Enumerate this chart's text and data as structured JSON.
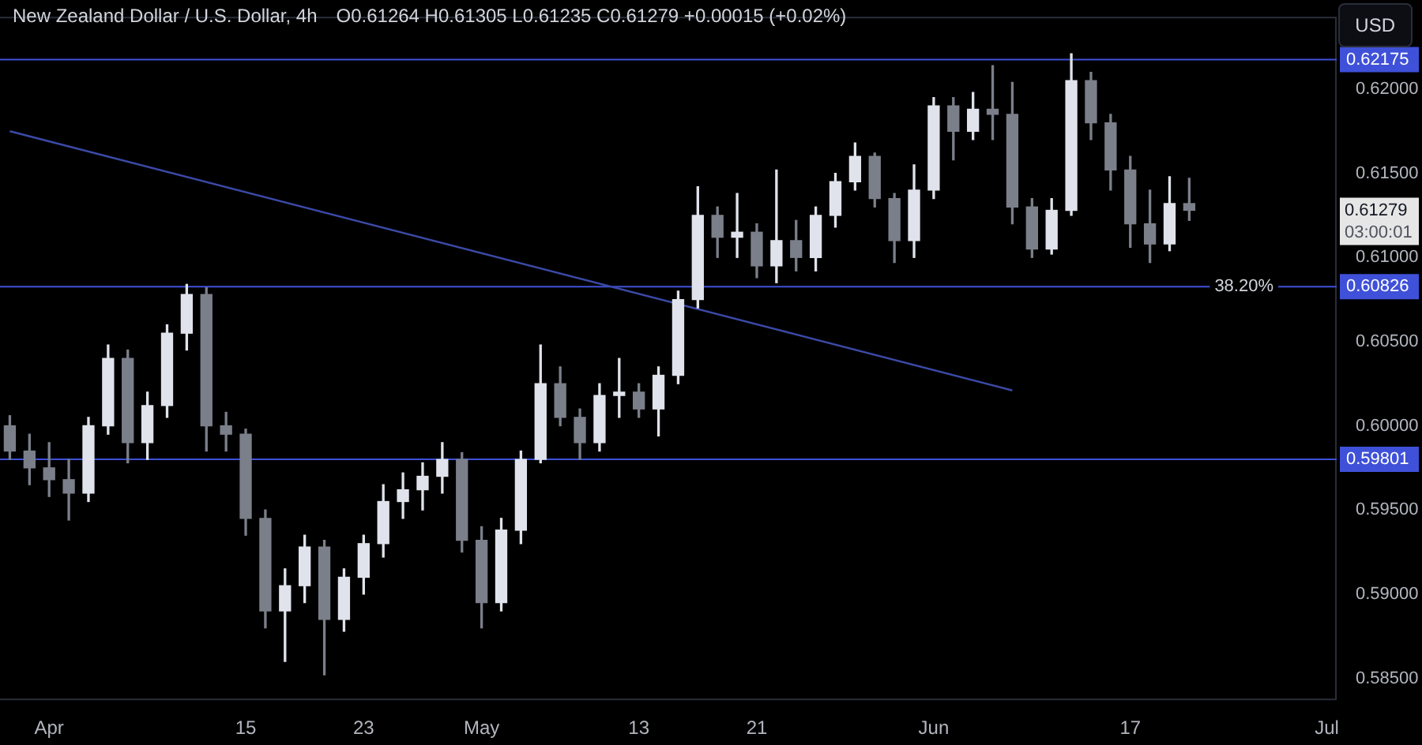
{
  "chart_data": {
    "type": "candlestick",
    "title": "New Zealand Dollar / U.S. Dollar, 4h",
    "subtitle": "O0.61264 H0.61305 L0.61235 C0.61279 +0.00015 (+0.02%)",
    "ylabel": "USD",
    "categories": [
      null,
      null,
      "Apr",
      null,
      null,
      null,
      null,
      null,
      null,
      null,
      null,
      null,
      "15",
      null,
      null,
      null,
      null,
      null,
      "23",
      null,
      null,
      null,
      null,
      null,
      "May",
      null,
      null,
      null,
      null,
      null,
      null,
      null,
      "13",
      null,
      null,
      null,
      null,
      null,
      "21",
      null,
      null,
      null,
      null,
      null,
      null,
      null,
      null,
      "Jun",
      null,
      null,
      null,
      null,
      null,
      null,
      null,
      null,
      null,
      "17",
      null,
      null,
      null,
      null,
      null,
      null,
      null,
      null,
      null,
      "Jul"
    ],
    "ohlc": [
      [
        0.6,
        0.6006,
        0.598,
        0.5985
      ],
      [
        0.5985,
        0.5995,
        0.5965,
        0.5975
      ],
      [
        0.5975,
        0.599,
        0.5958,
        0.5968
      ],
      [
        0.5968,
        0.598,
        0.5944,
        0.596
      ],
      [
        0.596,
        0.6005,
        0.5955,
        0.6
      ],
      [
        0.6,
        0.6048,
        0.5995,
        0.604
      ],
      [
        0.604,
        0.6045,
        0.5978,
        0.599
      ],
      [
        0.599,
        0.602,
        0.598,
        0.6012
      ],
      [
        0.6012,
        0.606,
        0.6005,
        0.6055
      ],
      [
        0.6055,
        0.6084,
        0.6045,
        0.6078
      ],
      [
        0.6078,
        0.6082,
        0.5985,
        0.6
      ],
      [
        0.6,
        0.6008,
        0.5985,
        0.5995
      ],
      [
        0.5995,
        0.5998,
        0.5935,
        0.5945
      ],
      [
        0.5945,
        0.595,
        0.588,
        0.589
      ],
      [
        0.589,
        0.5915,
        0.586,
        0.5905
      ],
      [
        0.5905,
        0.5935,
        0.5895,
        0.5928
      ],
      [
        0.5928,
        0.5932,
        0.5852,
        0.5885
      ],
      [
        0.5885,
        0.5915,
        0.5878,
        0.591
      ],
      [
        0.591,
        0.5935,
        0.59,
        0.593
      ],
      [
        0.593,
        0.5965,
        0.5922,
        0.5955
      ],
      [
        0.5955,
        0.5972,
        0.5945,
        0.5962
      ],
      [
        0.5962,
        0.5978,
        0.595,
        0.597
      ],
      [
        0.597,
        0.599,
        0.596,
        0.598
      ],
      [
        0.598,
        0.5984,
        0.5925,
        0.5932
      ],
      [
        0.5932,
        0.594,
        0.588,
        0.5895
      ],
      [
        0.5895,
        0.5945,
        0.589,
        0.5938
      ],
      [
        0.5938,
        0.5985,
        0.593,
        0.598
      ],
      [
        0.598,
        0.6048,
        0.5978,
        0.6025
      ],
      [
        0.6025,
        0.6035,
        0.6,
        0.6005
      ],
      [
        0.6005,
        0.601,
        0.598,
        0.599
      ],
      [
        0.599,
        0.6025,
        0.5985,
        0.6018
      ],
      [
        0.6018,
        0.604,
        0.6005,
        0.602
      ],
      [
        0.602,
        0.6025,
        0.6005,
        0.601
      ],
      [
        0.601,
        0.6035,
        0.5994,
        0.603
      ],
      [
        0.603,
        0.608,
        0.6025,
        0.6075
      ],
      [
        0.6075,
        0.6142,
        0.607,
        0.6125
      ],
      [
        0.6125,
        0.613,
        0.61,
        0.6112
      ],
      [
        0.6112,
        0.6138,
        0.61,
        0.6115
      ],
      [
        0.6115,
        0.612,
        0.6088,
        0.6095
      ],
      [
        0.6095,
        0.6152,
        0.6085,
        0.611
      ],
      [
        0.611,
        0.6122,
        0.6092,
        0.61
      ],
      [
        0.61,
        0.613,
        0.6092,
        0.6125
      ],
      [
        0.6125,
        0.615,
        0.6118,
        0.6145
      ],
      [
        0.6145,
        0.6168,
        0.614,
        0.616
      ],
      [
        0.616,
        0.6162,
        0.613,
        0.6135
      ],
      [
        0.6135,
        0.6138,
        0.6097,
        0.611
      ],
      [
        0.611,
        0.6155,
        0.61,
        0.614
      ],
      [
        0.614,
        0.6195,
        0.6135,
        0.619
      ],
      [
        0.619,
        0.6195,
        0.6158,
        0.6175
      ],
      [
        0.6175,
        0.6198,
        0.617,
        0.6188
      ],
      [
        0.6188,
        0.6214,
        0.617,
        0.6185
      ],
      [
        0.6185,
        0.6204,
        0.612,
        0.613
      ],
      [
        0.613,
        0.6135,
        0.61,
        0.6105
      ],
      [
        0.6105,
        0.6135,
        0.6102,
        0.6128
      ],
      [
        0.6128,
        0.6221,
        0.6125,
        0.6205
      ],
      [
        0.6205,
        0.621,
        0.617,
        0.618
      ],
      [
        0.618,
        0.6185,
        0.614,
        0.6152
      ],
      [
        0.6152,
        0.616,
        0.6106,
        0.612
      ],
      [
        0.612,
        0.614,
        0.6097,
        0.6108
      ],
      [
        0.6108,
        0.6148,
        0.6104,
        0.6132
      ],
      [
        0.6132,
        0.6147,
        0.6122,
        0.6128
      ],
      null,
      null,
      null,
      null,
      null,
      null,
      null
    ],
    "colors": [
      "#7b7f8a",
      "#7b7f8a",
      "#7b7f8a",
      "#7b7f8a",
      "#e0e3eb",
      "#e0e3eb",
      "#7b7f8a",
      "#e0e3eb",
      "#e0e3eb",
      "#e0e3eb",
      "#7b7f8a",
      "#7b7f8a",
      "#7b7f8a",
      "#7b7f8a",
      "#e0e3eb",
      "#e0e3eb",
      "#7b7f8a",
      "#e0e3eb",
      "#e0e3eb",
      "#e0e3eb",
      "#e0e3eb",
      "#e0e3eb",
      "#e0e3eb",
      "#7b7f8a",
      "#7b7f8a",
      "#e0e3eb",
      "#e0e3eb",
      "#e0e3eb",
      "#7b7f8a",
      "#7b7f8a",
      "#e0e3eb",
      "#e0e3eb",
      "#7b7f8a",
      "#e0e3eb",
      "#e0e3eb",
      "#e0e3eb",
      "#7b7f8a",
      "#e0e3eb",
      "#7b7f8a",
      "#e0e3eb",
      "#7b7f8a",
      "#e0e3eb",
      "#e0e3eb",
      "#e0e3eb",
      "#7b7f8a",
      "#7b7f8a",
      "#e0e3eb",
      "#e0e3eb",
      "#7b7f8a",
      "#e0e3eb",
      "#7b7f8a",
      "#7b7f8a",
      "#7b7f8a",
      "#e0e3eb",
      "#e0e3eb",
      "#7b7f8a",
      "#7b7f8a",
      "#7b7f8a",
      "#7b7f8a",
      "#e0e3eb",
      "#7b7f8a",
      null,
      null,
      null,
      null,
      null,
      null,
      null
    ],
    "series": [
      {
        "type": "line",
        "color": "#3c4aa8",
        "values": [
          0.6175,
          null,
          null,
          null,
          null,
          null,
          null,
          null,
          null,
          null,
          null,
          null,
          null,
          null,
          null,
          null,
          null,
          null,
          null,
          null,
          null,
          null,
          null,
          null,
          null,
          null,
          null,
          null,
          null,
          null,
          null,
          null,
          null,
          null,
          null,
          null,
          null,
          null,
          null,
          null,
          null,
          null,
          null,
          null,
          null,
          null,
          null,
          null,
          null,
          null,
          null,
          0.6021,
          null,
          null,
          null,
          null,
          null,
          null,
          null,
          null,
          null,
          null,
          null,
          null,
          null,
          null,
          null,
          null
        ]
      }
    ],
    "ylim": [
      0.5837,
      0.6243
    ],
    "yticks": [
      {
        "value": 0.585,
        "label": "0.58500"
      },
      {
        "value": 0.59,
        "label": "0.59000"
      },
      {
        "value": 0.595,
        "label": "0.59500"
      },
      {
        "value": 0.6,
        "label": "0.60000"
      },
      {
        "value": 0.605,
        "label": "0.60500"
      },
      {
        "value": 0.61,
        "label": "0.61000"
      },
      {
        "value": 0.615,
        "label": "0.61500"
      },
      {
        "value": 0.62,
        "label": "0.62000"
      }
    ],
    "ref_lines": [
      {
        "axis": "y",
        "value": 0.62175,
        "label": "0.62175",
        "color": "#3f51d8"
      },
      {
        "axis": "y",
        "value": 0.60826,
        "label": "0.60826",
        "color": "#3f51d8"
      },
      {
        "axis": "y",
        "value": 0.59801,
        "label": "0.59801",
        "color": "#3f51d8"
      }
    ],
    "annotations": [
      {
        "text": "38.20%",
        "y": 0.60826
      },
      "0.61279",
      "03:00:01"
    ],
    "legend": false
  }
}
